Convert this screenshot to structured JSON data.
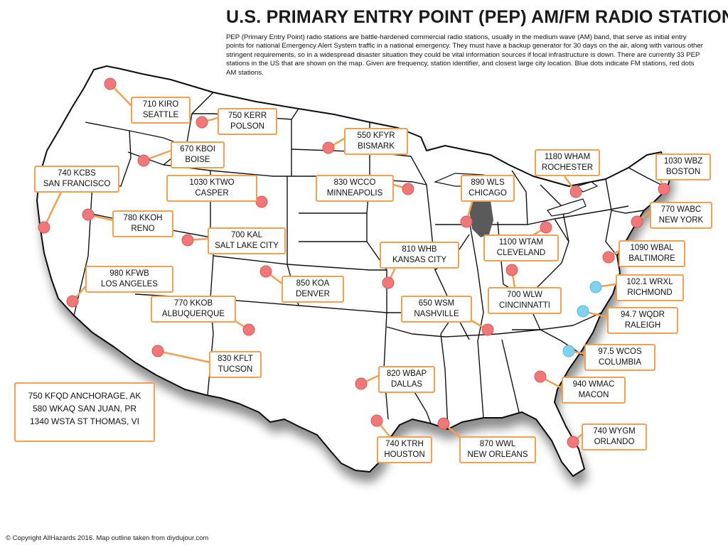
{
  "title": "U.S. PRIMARY ENTRY POINT (PEP) AM/FM RADIO STATIONS",
  "description": "PEP (Primary Entry Point) radio stations are battle-hardened commercial radio stations, usually in the medium wave (AM) band, that serve as initial entry points for national Emergency Alert System traffic in a national emergency. They must have a backup generator for 30 days on the air, along with various other stringent requirements, so in a widespread disaster situation they could be vital information sources if local infrastructure is down. There are currently 33 PEP stations in the US that are shown on the map. Given are frequency, station identifier, and closest large city location.  Blue dots indicate FM stations, red dots AM stations.",
  "colors": {
    "am_dot": "#f07878",
    "fm_dot": "#7fd3ee",
    "label_border": "#f2a050",
    "lake": "#5a5a5a"
  },
  "stations": [
    {
      "id": "kiro",
      "line1": "710 KIRO",
      "line2": "SEATTLE",
      "band": "AM"
    },
    {
      "id": "kerr",
      "line1": "750 KERR",
      "line2": "POLSON",
      "band": "AM"
    },
    {
      "id": "kboi",
      "line1": "670 KBOI",
      "line2": "BOISE",
      "band": "AM"
    },
    {
      "id": "kcbs",
      "line1": "740 KCBS",
      "line2": "SAN FRANCISCO",
      "band": "AM"
    },
    {
      "id": "ktwo",
      "line1": "1030 KTWO",
      "line2": "CASPER",
      "band": "AM"
    },
    {
      "id": "kkoh",
      "line1": "780 KKOH",
      "line2": "RENO",
      "band": "AM"
    },
    {
      "id": "kal",
      "line1": "700 KAL",
      "line2": "SALT LAKE CITY",
      "band": "AM"
    },
    {
      "id": "kfwb",
      "line1": "980 KFWB",
      "line2": "LOS ANGELES",
      "band": "AM"
    },
    {
      "id": "koa",
      "line1": "850 KOA",
      "line2": "DENVER",
      "band": "AM"
    },
    {
      "id": "kkob",
      "line1": "770 KKOB",
      "line2": "ALBUQUERQUE",
      "band": "AM"
    },
    {
      "id": "kflt",
      "line1": "830 KFLT",
      "line2": "TUCSON",
      "band": "AM"
    },
    {
      "id": "kfyr",
      "line1": "550 KFYR",
      "line2": "BISMARK",
      "band": "AM"
    },
    {
      "id": "wcco",
      "line1": "830 WCCO",
      "line2": "MINNEAPOLIS",
      "band": "AM"
    },
    {
      "id": "wls",
      "line1": "890 WLS",
      "line2": "CHICAGO",
      "band": "AM"
    },
    {
      "id": "whb",
      "line1": "810 WHB",
      "line2": "KANSAS CITY",
      "band": "AM"
    },
    {
      "id": "wsm",
      "line1": "650 WSM",
      "line2": "NASHVILLE",
      "band": "AM"
    },
    {
      "id": "wbap",
      "line1": "820 WBAP",
      "line2": "DALLAS",
      "band": "AM"
    },
    {
      "id": "ktrh",
      "line1": "740 KTRH",
      "line2": "HOUSTON",
      "band": "AM"
    },
    {
      "id": "wwl",
      "line1": "870 WWL",
      "line2": "NEW ORLEANS",
      "band": "AM"
    },
    {
      "id": "wham",
      "line1": "1180 WHAM",
      "line2": "ROCHESTER",
      "band": "AM"
    },
    {
      "id": "wbz",
      "line1": "1030 WBZ",
      "line2": "BOSTON",
      "band": "AM"
    },
    {
      "id": "wabc",
      "line1": "770 WABC",
      "line2": "NEW YORK",
      "band": "AM"
    },
    {
      "id": "wtam",
      "line1": "1100 WTAM",
      "line2": "CLEVELAND",
      "band": "AM"
    },
    {
      "id": "wbal",
      "line1": "1090 WBAL",
      "line2": "BALTIMORE",
      "band": "AM"
    },
    {
      "id": "wrxl",
      "line1": "102.1 WRXL",
      "line2": "RICHMOND",
      "band": "FM"
    },
    {
      "id": "wlw",
      "line1": "700 WLW",
      "line2": "CINCINNATTI",
      "band": "AM"
    },
    {
      "id": "wqdr",
      "line1": "94.7 WQDR",
      "line2": "RALEIGH",
      "band": "FM"
    },
    {
      "id": "wcos",
      "line1": "97.5 WCOS",
      "line2": "COLUMBIA",
      "band": "FM"
    },
    {
      "id": "wmac",
      "line1": "940 WMAC",
      "line2": "MACON",
      "band": "AM"
    },
    {
      "id": "wygm",
      "line1": "740 WYGM",
      "line2": "ORLANDO",
      "band": "AM"
    }
  ],
  "territories": [
    "750 KFQD ANCHORAGE, AK",
    "580 WKAQ SAN JUAN, PR",
    "1340 WSTA ST THOMAS, VI"
  ],
  "copyright": "© Copyright AllHazards 2016. Map outline taken from diydujour.com"
}
